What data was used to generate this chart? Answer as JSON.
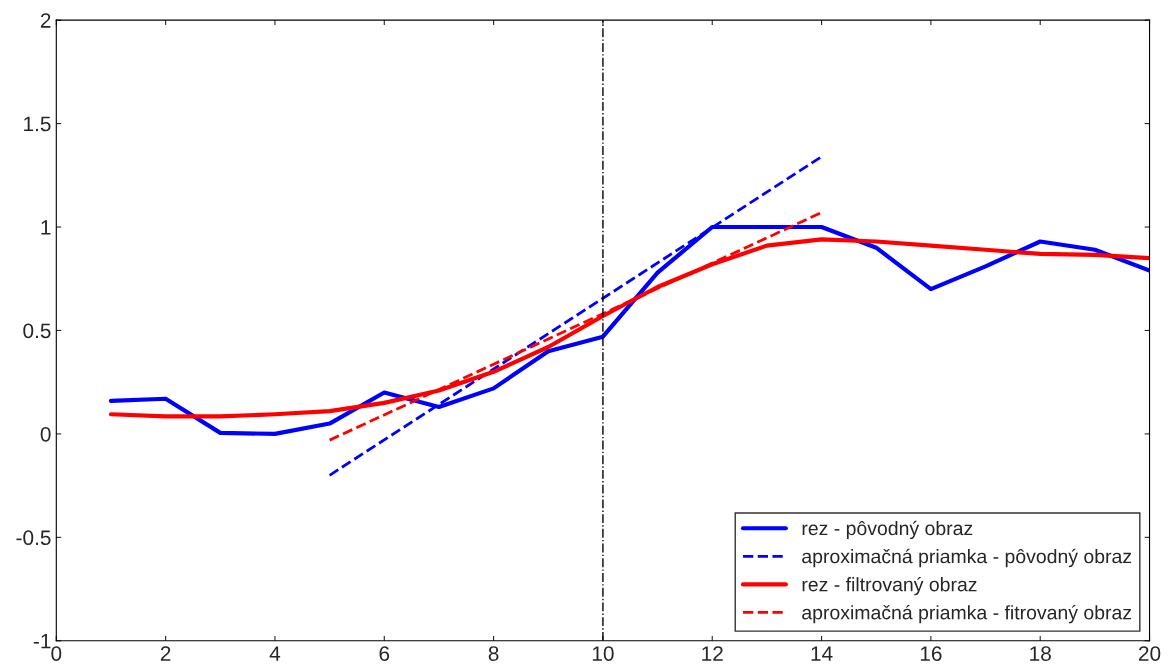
{
  "chart_data": {
    "type": "line",
    "xlim": [
      0,
      20
    ],
    "ylim": [
      -1,
      2
    ],
    "xticks": [
      0,
      2,
      4,
      6,
      8,
      10,
      12,
      14,
      16,
      18,
      20
    ],
    "yticks": [
      -1,
      -0.5,
      0,
      0.5,
      1,
      1.5,
      2
    ],
    "grid": false,
    "legend": "bottom right",
    "series": [
      {
        "name": "rez - pôvodný obraz",
        "color": "#0000ff",
        "line_style": "solid",
        "x": [
          1,
          2,
          3,
          4,
          5,
          6,
          7,
          8,
          9,
          10,
          11,
          12,
          13,
          14,
          15,
          16,
          17,
          18,
          19,
          20
        ],
        "values": [
          0.16,
          0.17,
          0.005,
          0.0,
          0.05,
          0.2,
          0.13,
          0.22,
          0.4,
          0.47,
          0.78,
          1.0,
          1.0,
          1.0,
          0.9,
          0.7,
          0.81,
          0.93,
          0.89,
          0.79
        ]
      },
      {
        "name": "aproximačná priamka - pôvodný obraz",
        "color": "#0000ff",
        "line_style": "dashed",
        "x": [
          5,
          14
        ],
        "values": [
          -0.2,
          1.34
        ]
      },
      {
        "name": "rez - filtrovaný obraz",
        "color": "#ff0000",
        "line_style": "solid",
        "x": [
          1,
          2,
          3,
          4,
          5,
          6,
          7,
          8,
          9,
          10,
          11,
          12,
          13,
          14,
          15,
          16,
          17,
          18,
          19,
          20
        ],
        "values": [
          0.095,
          0.085,
          0.085,
          0.095,
          0.11,
          0.15,
          0.21,
          0.3,
          0.42,
          0.57,
          0.71,
          0.82,
          0.91,
          0.94,
          0.93,
          0.91,
          0.89,
          0.87,
          0.865,
          0.85
        ]
      },
      {
        "name": "aproximačná priamka - fitrovaný obraz",
        "color": "#ff0000",
        "line_style": "dashed",
        "x": [
          5,
          14
        ],
        "values": [
          -0.03,
          1.07
        ]
      }
    ],
    "ref_lines": [
      {
        "axis": "x",
        "value": 10,
        "color": "#000000",
        "line_style": "dashdot"
      }
    ]
  }
}
